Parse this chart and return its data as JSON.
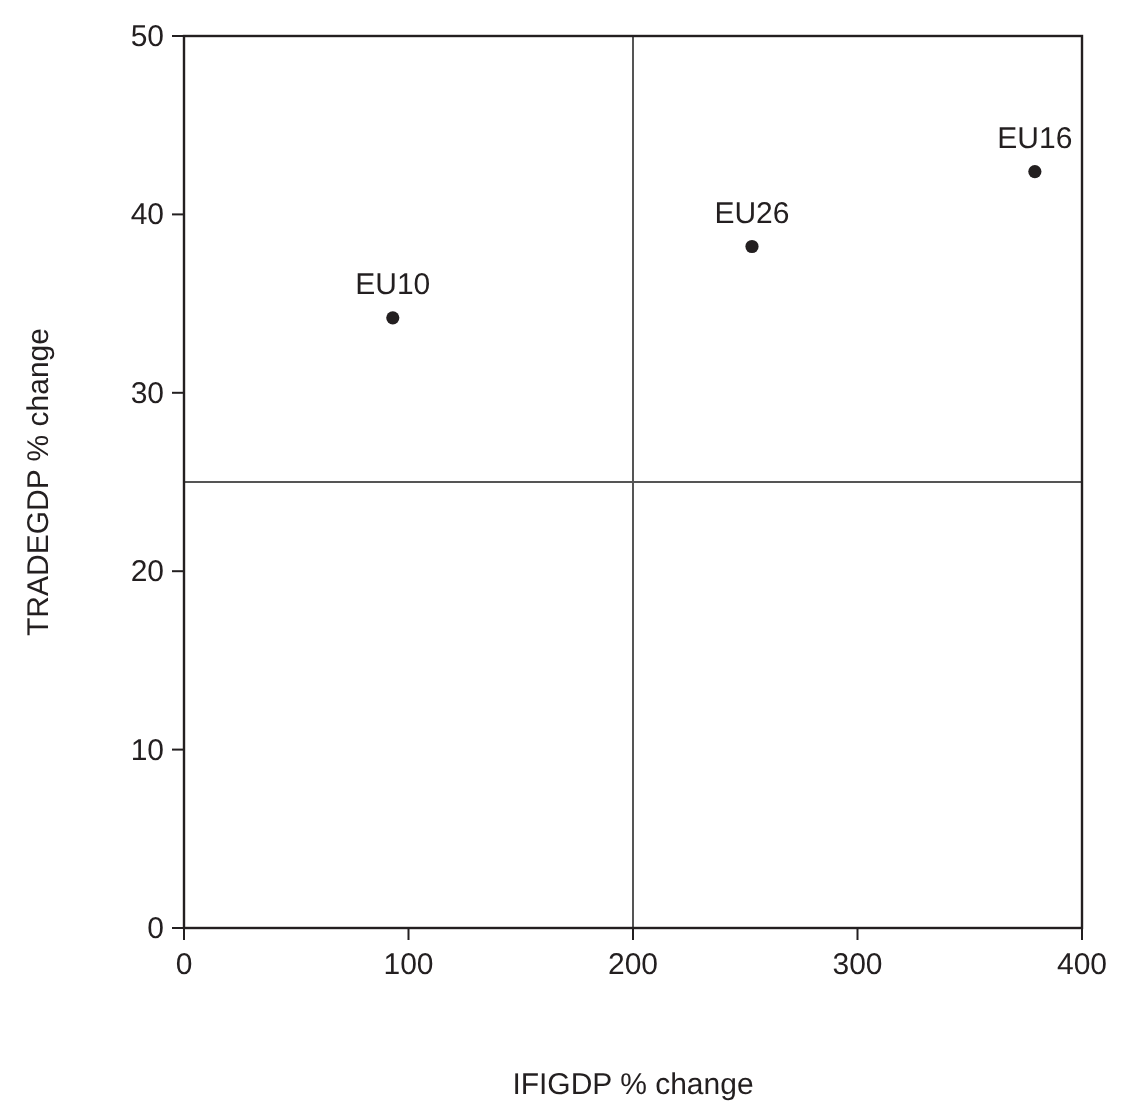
{
  "chart_data": {
    "type": "scatter",
    "xlabel": "IFIGDP % change",
    "ylabel": "TRADEGDP % change",
    "x": [
      93,
      253,
      379
    ],
    "values": [
      34.2,
      38.2,
      42.4
    ],
    "color": "#231f20",
    "marker": "circle",
    "xlim": [
      0,
      400
    ],
    "xticks": [
      0,
      100,
      200,
      300,
      400
    ],
    "ylim": [
      0,
      50
    ],
    "yticks": [
      0,
      10,
      20,
      30,
      40,
      50
    ],
    "grid": false,
    "ref_lines": [
      {
        "axis": "x",
        "value": 200,
        "color": "#555555"
      },
      {
        "axis": "y",
        "value": 25,
        "color": "#555555"
      }
    ],
    "annotations": [
      {
        "text": "EU10",
        "x": 93,
        "y": 34.2
      },
      {
        "text": "EU26",
        "x": 253,
        "y": 38.2
      },
      {
        "text": "EU16",
        "x": 379,
        "y": 42.4
      }
    ]
  }
}
